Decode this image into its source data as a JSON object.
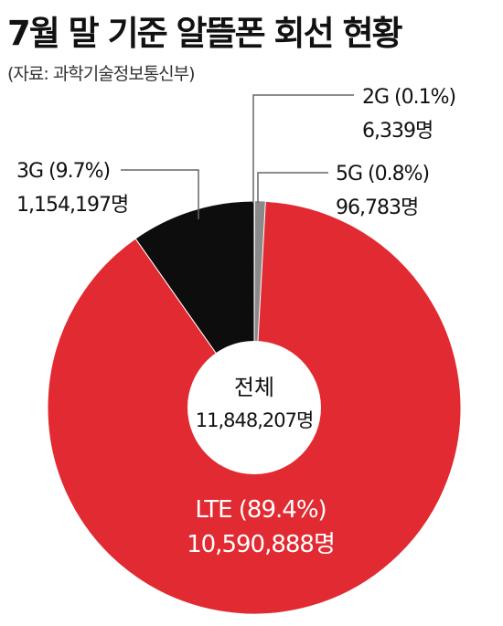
{
  "title": "7월 말 기준 알뜰폰 회선 현황",
  "source": "(자료: 과학기술정보통신부)",
  "colors": {
    "lte": "#e12a31",
    "g3": "#0d0d0d",
    "g5": "#8a8a8a",
    "g2": "#e12a31",
    "center": "#ffffff",
    "leader": "#666666"
  },
  "chart_data": {
    "type": "pie",
    "style": "donut",
    "center_label": "전체",
    "center_value": "11,848,207명",
    "slices": [
      {
        "key": "g2",
        "label": "2G (0.1%)",
        "value_text": "6,339명",
        "value": 6339,
        "percent": 0.1
      },
      {
        "key": "g5",
        "label": "5G (0.8%)",
        "value_text": "96,783명",
        "value": 96783,
        "percent": 0.8
      },
      {
        "key": "lte",
        "label": "LTE (89.4%)",
        "value_text": "10,590,888명",
        "value": 10590888,
        "percent": 89.4
      },
      {
        "key": "g3",
        "label": "3G (9.7%)",
        "value_text": "1,154,197명",
        "value": 1154197,
        "percent": 9.7
      }
    ]
  }
}
